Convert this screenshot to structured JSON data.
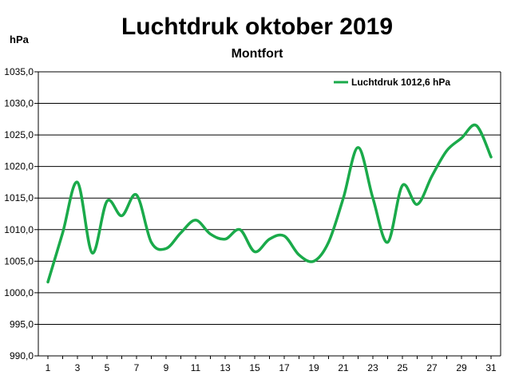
{
  "chart_data": {
    "type": "line",
    "title": "Luchtdruk oktober 2019",
    "subtitle": "Montfort",
    "ylabel": "hPa",
    "xlabel": "",
    "ylim": [
      990,
      1035
    ],
    "xlim": [
      1,
      31
    ],
    "grid": true,
    "legend_position": "top-right",
    "line_color": "#1aaa4a",
    "x": [
      1,
      2,
      3,
      4,
      5,
      6,
      7,
      8,
      9,
      10,
      11,
      12,
      13,
      14,
      15,
      16,
      17,
      18,
      19,
      20,
      21,
      22,
      23,
      24,
      25,
      26,
      27,
      28,
      29,
      30,
      31
    ],
    "x_tick_labels": [
      "1",
      "3",
      "5",
      "7",
      "9",
      "11",
      "13",
      "15",
      "17",
      "19",
      "21",
      "23",
      "25",
      "27",
      "29",
      "31"
    ],
    "y_tick_labels": [
      "990,0",
      "995,0",
      "1000,0",
      "1005,0",
      "1010,0",
      "1015,0",
      "1020,0",
      "1025,0",
      "1030,0",
      "1035,0"
    ],
    "y_tick_values": [
      990,
      995,
      1000,
      1005,
      1010,
      1015,
      1020,
      1025,
      1030,
      1035
    ],
    "series": [
      {
        "name": "Luchtdruk 1012,6 hPa",
        "values": [
          1001.7,
          1009.5,
          1017.5,
          1006.3,
          1014.5,
          1012.2,
          1015.5,
          1008.0,
          1007.0,
          1009.5,
          1011.5,
          1009.3,
          1008.5,
          1010.0,
          1006.5,
          1008.5,
          1009.0,
          1006.0,
          1005.0,
          1008.0,
          1015.0,
          1023.0,
          1015.0,
          1008.0,
          1017.0,
          1014.0,
          1018.5,
          1022.5,
          1024.5,
          1026.5,
          1021.5
        ]
      }
    ]
  }
}
